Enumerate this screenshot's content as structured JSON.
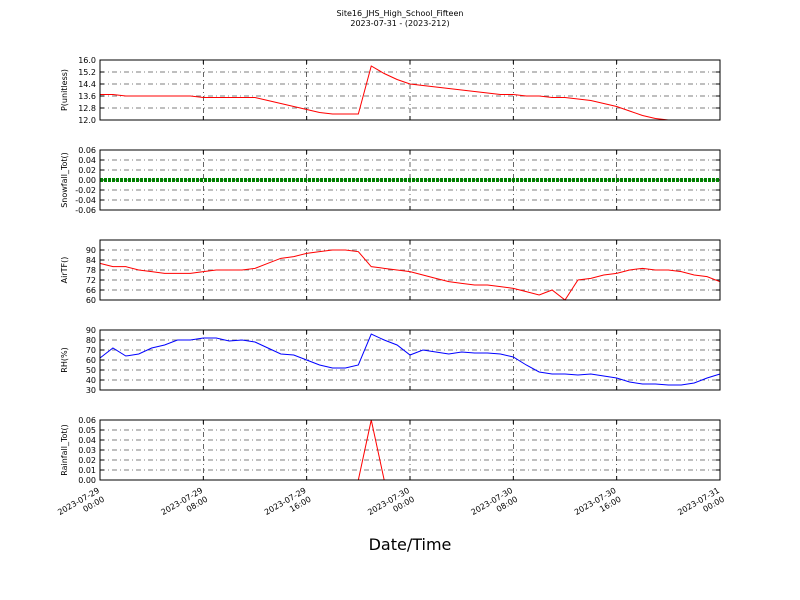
{
  "title": "Site16_JHS_High_School_Fifteen",
  "subtitle": "2023-07-31 - (2023-212)",
  "x_label": "Date/Time",
  "x": [
    "2023-07-29 00:00",
    "2023-07-29 01:00",
    "2023-07-29 02:00",
    "2023-07-29 03:00",
    "2023-07-29 04:00",
    "2023-07-29 05:00",
    "2023-07-29 06:00",
    "2023-07-29 07:00",
    "2023-07-29 08:00",
    "2023-07-29 09:00",
    "2023-07-29 10:00",
    "2023-07-29 11:00",
    "2023-07-29 12:00",
    "2023-07-29 13:00",
    "2023-07-29 14:00",
    "2023-07-29 15:00",
    "2023-07-29 16:00",
    "2023-07-29 17:00",
    "2023-07-29 18:00",
    "2023-07-29 19:00",
    "2023-07-29 20:00",
    "2023-07-29 21:00",
    "2023-07-29 22:00",
    "2023-07-29 23:00",
    "2023-07-30 00:00",
    "2023-07-30 01:00",
    "2023-07-30 02:00",
    "2023-07-30 03:00",
    "2023-07-30 04:00",
    "2023-07-30 05:00",
    "2023-07-30 06:00",
    "2023-07-30 07:00",
    "2023-07-30 08:00",
    "2023-07-30 09:00",
    "2023-07-30 10:00",
    "2023-07-30 11:00",
    "2023-07-30 12:00",
    "2023-07-30 13:00",
    "2023-07-30 14:00",
    "2023-07-30 15:00",
    "2023-07-30 16:00",
    "2023-07-30 17:00",
    "2023-07-30 18:00",
    "2023-07-30 19:00",
    "2023-07-30 20:00",
    "2023-07-30 21:00",
    "2023-07-30 22:00",
    "2023-07-30 23:00",
    "2023-07-31 00:00"
  ],
  "xlim": [
    "2023-07-29 00:00",
    "2023-07-31 00:00"
  ],
  "xticks": [
    {
      "value": "2023-07-29 00:00",
      "label": [
        "2023-07-29",
        "00:00"
      ]
    },
    {
      "value": "2023-07-29 08:00",
      "label": [
        "2023-07-29",
        "08:00"
      ]
    },
    {
      "value": "2023-07-29 16:00",
      "label": [
        "2023-07-29",
        "16:00"
      ]
    },
    {
      "value": "2023-07-30 00:00",
      "label": [
        "2023-07-30",
        "00:00"
      ]
    },
    {
      "value": "2023-07-30 08:00",
      "label": [
        "2023-07-30",
        "08:00"
      ]
    },
    {
      "value": "2023-07-30 16:00",
      "label": [
        "2023-07-30",
        "16:00"
      ]
    },
    {
      "value": "2023-07-31 00:00",
      "label": [
        "2023-07-31",
        "00:00"
      ]
    }
  ],
  "chart_data": [
    {
      "type": "line",
      "y_label": "P(unitless)",
      "color": "#ff0000",
      "grid": true,
      "ylim": [
        12.0,
        16.0
      ],
      "yticks": [
        {
          "value": 12.0,
          "label": "12.0"
        },
        12.8,
        13.6,
        14.4,
        15.2,
        {
          "value": 16.0,
          "label": "16.0"
        }
      ],
      "values": [
        13.7,
        13.7,
        13.6,
        13.6,
        13.6,
        13.6,
        13.6,
        13.6,
        13.5,
        13.5,
        13.5,
        13.5,
        13.5,
        13.3,
        13.1,
        12.9,
        12.7,
        12.5,
        12.4,
        12.4,
        12.4,
        15.6,
        15.1,
        14.7,
        14.4,
        14.3,
        14.2,
        14.1,
        14.0,
        13.9,
        13.8,
        13.7,
        13.7,
        13.6,
        13.6,
        13.5,
        13.5,
        13.4,
        13.3,
        13.1,
        12.9,
        12.6,
        12.3,
        12.1,
        12.0,
        12.0,
        12.0,
        12.0,
        12.0
      ]
    },
    {
      "type": "line",
      "y_label": "Snowfall_Tot()",
      "color": "#008000",
      "grid": true,
      "dotted": true,
      "ylim": [
        -0.06,
        0.06
      ],
      "yticks": [
        -0.06,
        -0.04,
        -0.02,
        {
          "value": 0,
          "label": "0.00"
        },
        0.02,
        0.04,
        0.06
      ],
      "values": [
        0,
        0,
        0,
        0,
        0,
        0,
        0,
        0,
        0,
        0,
        0,
        0,
        0,
        0,
        0,
        0,
        0,
        0,
        0,
        0,
        0,
        0,
        0,
        0,
        0,
        0,
        0,
        0,
        0,
        0,
        0,
        0,
        0,
        0,
        0,
        0,
        0,
        0,
        0,
        0,
        0,
        0,
        0,
        0,
        0,
        0,
        0,
        0,
        0
      ]
    },
    {
      "type": "line",
      "y_label": "AirTF()",
      "color": "#ff0000",
      "grid": true,
      "ylim": [
        60,
        96
      ],
      "yticks": [
        60,
        66,
        72,
        78,
        84,
        90
      ],
      "values": [
        82,
        80,
        80,
        78,
        77,
        76,
        76,
        76,
        77,
        78,
        78,
        78,
        79,
        82,
        85,
        86,
        88,
        89,
        90,
        90,
        89,
        80,
        79,
        78,
        77,
        75,
        73,
        71,
        70,
        69,
        69,
        68,
        67,
        65,
        63,
        66,
        60,
        72,
        73,
        75,
        76,
        78,
        79,
        78,
        78,
        77,
        75,
        74,
        71
      ]
    },
    {
      "type": "line",
      "y_label": "RH(%)",
      "color": "#0000ff",
      "grid": true,
      "ylim": [
        30,
        90
      ],
      "yticks": [
        30,
        40,
        50,
        60,
        70,
        80,
        90
      ],
      "values": [
        62,
        72,
        64,
        66,
        72,
        75,
        80,
        80,
        82,
        82,
        79,
        80,
        78,
        72,
        66,
        65,
        60,
        55,
        52,
        52,
        55,
        86,
        80,
        75,
        65,
        70,
        68,
        66,
        68,
        67,
        67,
        66,
        63,
        55,
        48,
        46,
        46,
        45,
        46,
        44,
        42,
        38,
        36,
        36,
        35,
        35,
        37,
        42,
        46
      ]
    },
    {
      "type": "line",
      "y_label": "Rainfall_Tot()",
      "color": "#ff0000",
      "grid": true,
      "ylim": [
        0,
        0.06
      ],
      "yticks": [
        {
          "value": 0,
          "label": "0.00"
        },
        0.01,
        0.02,
        0.03,
        0.04,
        0.05,
        0.06
      ],
      "values": [
        0,
        0,
        0,
        0,
        0,
        0,
        0,
        0,
        0,
        0,
        0,
        0,
        0,
        0,
        0,
        0,
        0,
        0,
        0,
        0,
        0,
        0.06,
        0,
        0,
        0,
        0,
        0,
        0,
        0,
        0,
        0,
        0,
        0,
        0,
        0,
        0,
        0,
        0,
        0,
        0,
        0,
        0,
        0,
        0,
        0,
        0,
        0,
        0,
        0
      ]
    }
  ]
}
